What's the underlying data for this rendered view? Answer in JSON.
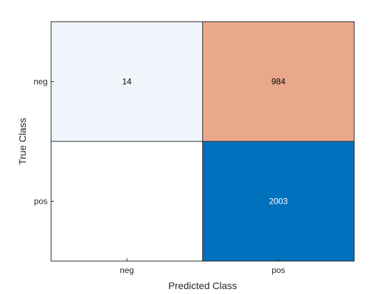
{
  "chart_data": {
    "type": "heatmap",
    "title": "",
    "xlabel": "Predicted Class",
    "ylabel": "True Class",
    "x_categories": [
      "neg",
      "pos"
    ],
    "y_categories": [
      "neg",
      "pos"
    ],
    "values": [
      [
        14,
        984
      ],
      [
        0,
        2003
      ]
    ],
    "cell_labels": [
      [
        "14",
        "984"
      ],
      [
        "",
        "2003"
      ]
    ],
    "cell_colors": [
      [
        "#f0f5fb",
        "#eaa88a"
      ],
      [
        "#ffffff",
        "#0072bd"
      ]
    ],
    "cell_text_colors": [
      [
        "#000000",
        "#000000"
      ],
      [
        "#000000",
        "#ffffff"
      ]
    ],
    "grid": true
  }
}
